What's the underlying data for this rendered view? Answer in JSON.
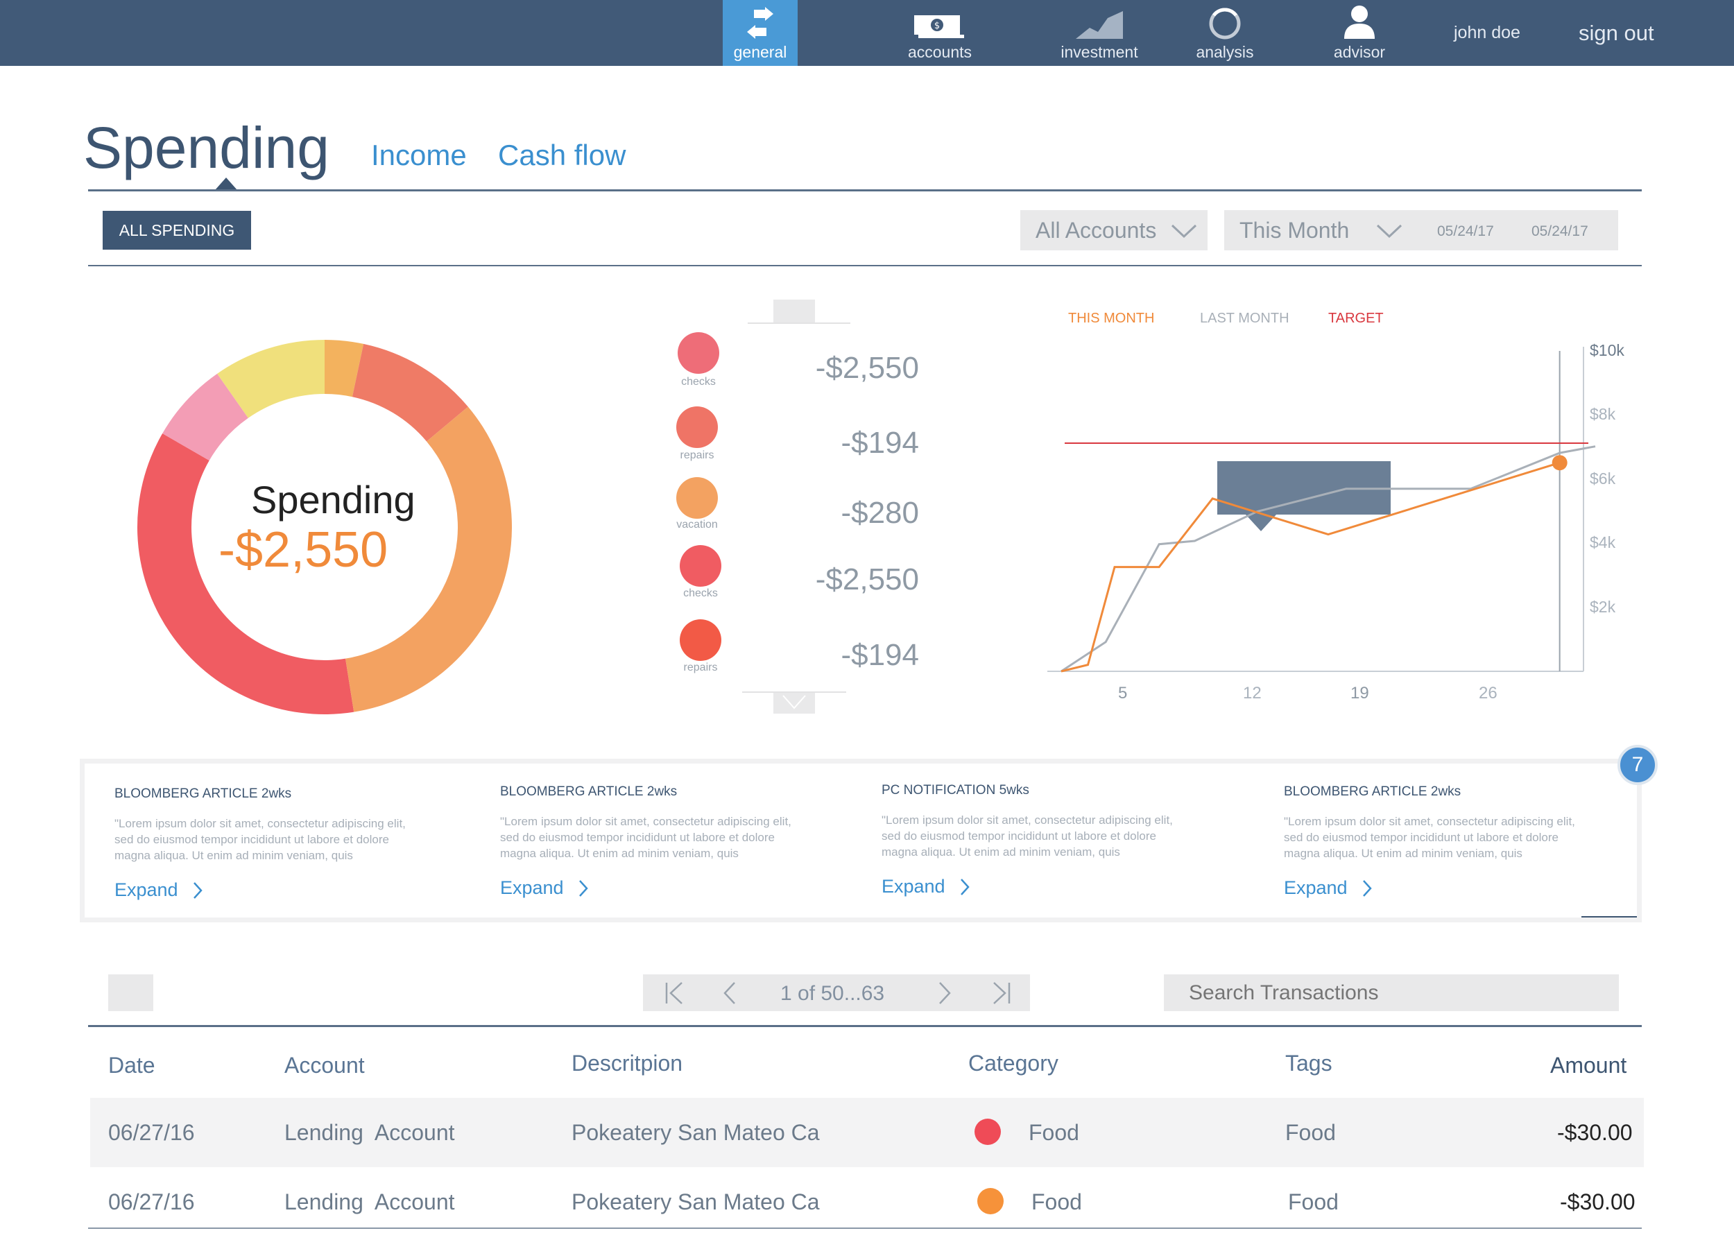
{
  "nav": {
    "items": [
      {
        "label": "general",
        "icon": "transfer-arrows-icon",
        "active": true
      },
      {
        "label": "accounts",
        "icon": "money-stack-icon",
        "active": false
      },
      {
        "label": "investment",
        "icon": "area-chart-icon",
        "active": false
      },
      {
        "label": "analysis",
        "icon": "ring-gauge-icon",
        "active": false
      },
      {
        "label": "advisor",
        "icon": "person-icon",
        "active": false
      }
    ],
    "user": "john doe",
    "sign_out": "sign out"
  },
  "header": {
    "title": "Spending",
    "tabs": [
      "Income",
      "Cash flow"
    ]
  },
  "filters": {
    "all_spending": "ALL SPENDING",
    "accounts_select": "All Accounts",
    "period_select": "This Month",
    "date_from": "05/24/17",
    "date_to": "05/24/17"
  },
  "donut": {
    "title": "Spending",
    "value": "-$2,550",
    "colors": [
      "#f05c62",
      "#f39db5",
      "#f0e07c",
      "#f3b25e",
      "#ef7b66",
      "#f3a261"
    ]
  },
  "legend": [
    {
      "label": "checks",
      "amount": "-$2,550",
      "color": "#ee6d78"
    },
    {
      "label": "repairs",
      "amount": "-$194",
      "color": "#ef7466"
    },
    {
      "label": "vacation",
      "amount": "-$280",
      "color": "#f3a261"
    },
    {
      "label": "checks",
      "amount": "-$2,550",
      "color": "#f05c62"
    },
    {
      "label": "repairs",
      "amount": "-$194",
      "color": "#f25a46"
    }
  ],
  "chart_data": {
    "type": "line",
    "legend": [
      "THIS MONTH",
      "LAST MONTH",
      "TARGET"
    ],
    "legend_colors": [
      "#f08a3a",
      "#a9b0b8",
      "#d9383f"
    ],
    "x_ticks": [
      "5",
      "12",
      "19",
      "26"
    ],
    "y_ticks": [
      "$10k",
      "$8k",
      "$6k",
      "$4k",
      "$2k"
    ],
    "ylim": [
      0,
      10000
    ],
    "xlim": [
      1,
      31
    ],
    "target": 7000,
    "series": [
      {
        "name": "THIS MONTH",
        "color": "#f08a3a",
        "x": [
          1,
          2.5,
          4,
          6.5,
          9.5,
          16,
          29
        ],
        "y": [
          0,
          200,
          3200,
          3200,
          5300,
          4200,
          6400
        ]
      },
      {
        "name": "LAST MONTH",
        "color": "#a9b0b8",
        "x": [
          1,
          3.5,
          6.5,
          8.5,
          12,
          17,
          24,
          29,
          31
        ],
        "y": [
          0,
          900,
          3900,
          4000,
          4900,
          5600,
          5600,
          6700,
          6900
        ]
      }
    ],
    "marker": {
      "x": 29,
      "y": 6400
    }
  },
  "news": [
    {
      "title": "BLOOMBERG ARTICLE 2wks",
      "body": "\"Lorem ipsum dolor sit amet, consectetur adipiscing elit, sed do eiusmod tempor incididunt ut labore et dolore magna aliqua. Ut enim ad minim veniam, quis",
      "expand": "Expand"
    },
    {
      "title": "BLOOMBERG ARTICLE 2wks",
      "body": "\"Lorem ipsum dolor sit amet, consectetur adipiscing elit, sed do eiusmod tempor incididunt ut labore et dolore magna aliqua. Ut enim ad minim veniam, quis",
      "expand": "Expand"
    },
    {
      "title": "PC NOTIFICATION 5wks",
      "body": "\"Lorem ipsum dolor sit amet, consectetur adipiscing elit, sed do eiusmod tempor incididunt ut labore et dolore magna aliqua. Ut enim ad minim veniam, quis",
      "expand": "Expand"
    },
    {
      "title": "BLOOMBERG ARTICLE 2wks",
      "body": "\"Lorem ipsum dolor sit amet, consectetur adipiscing elit, sed do eiusmod tempor incididunt ut labore et dolore magna aliqua. Ut enim ad minim veniam, quis",
      "expand": "Expand"
    }
  ],
  "notification_count": "7",
  "pager": {
    "text": "1 of 50...63"
  },
  "search": {
    "placeholder": "Search Transactions"
  },
  "table": {
    "headers": [
      "Date",
      "Account",
      "Descritpion",
      "Category",
      "Tags",
      "Amount"
    ],
    "rows": [
      {
        "date": "06/27/16",
        "account": "Lending  Account",
        "description": "Pokeatery San Mateo Ca",
        "category": "Food",
        "category_color": "#ef4b57",
        "tags": "Food",
        "amount": "-$30.00"
      },
      {
        "date": "06/27/16",
        "account": "Lending  Account",
        "description": "Pokeatery San Mateo Ca",
        "category": "Food",
        "category_color": "#f6923a",
        "tags": "Food",
        "amount": "-$30.00"
      }
    ]
  }
}
